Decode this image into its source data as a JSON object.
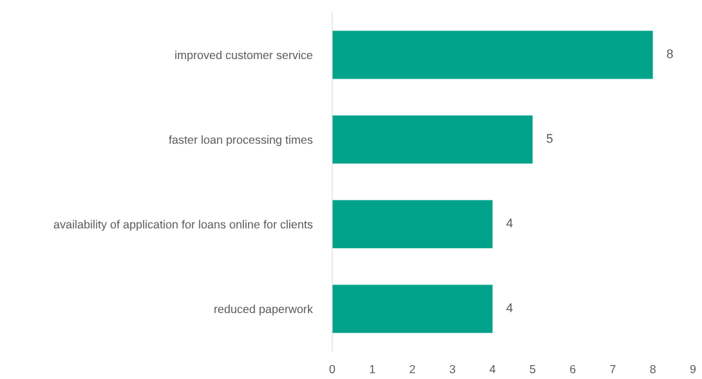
{
  "chart_data": {
    "type": "bar",
    "orientation": "horizontal",
    "categories": [
      "improved customer service",
      "faster loan processing times",
      "availability of application for loans online for clients",
      "reduced paperwork"
    ],
    "values": [
      8,
      5,
      4,
      4
    ],
    "color": "#00a38a",
    "xlim": [
      0,
      9
    ],
    "xticks": [
      0,
      1,
      2,
      3,
      4,
      5,
      6,
      7,
      8,
      9
    ],
    "data_labels": true,
    "grid": false,
    "legend": false
  }
}
